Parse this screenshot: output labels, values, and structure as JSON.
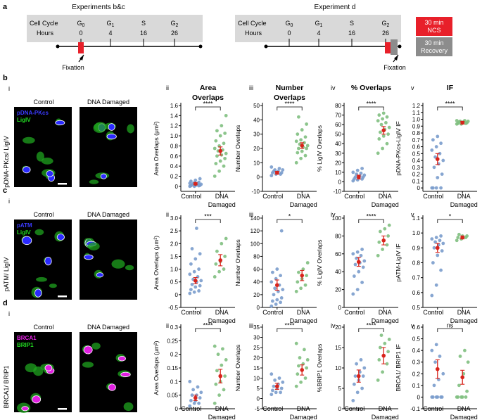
{
  "panel_a": {
    "letter": "a",
    "left": {
      "title": "Experiments b&c",
      "row1_label": "Cell Cycle",
      "row2_label": "Hours",
      "phases": [
        "G0",
        "G1",
        "S",
        "G2"
      ],
      "hours": [
        "0",
        "4",
        "16",
        "26"
      ],
      "marker_label": "Fixation"
    },
    "right": {
      "title": "Experiment d",
      "row1_label": "Cell Cycle",
      "row2_label": "Hours",
      "phases": [
        "G0",
        "G1",
        "S",
        "G2"
      ],
      "hours": [
        "0",
        "4",
        "16",
        "26"
      ],
      "marker_label": "Fixation",
      "legend": [
        {
          "line1": "30 min",
          "line2": "NCS",
          "color": "#e8202a"
        },
        {
          "line1": "30 min",
          "line2": "Recovery",
          "color": "#8c8c8c"
        }
      ]
    }
  },
  "micro": {
    "b": {
      "letter": "b",
      "sub": "i",
      "ylabel": "pDNA-PKcs/ LigIV",
      "col1": "Control",
      "col2": "DNA Damaged",
      "legend1": "pDNA-PKcs",
      "legend1_color": "#3b3bff",
      "legend2": "LigIV",
      "legend2_color": "#22dd22"
    },
    "c": {
      "letter": "c",
      "sub": "i",
      "ylabel": "pATM/ LigIV",
      "col1": "Control",
      "col2": "DNA Damaged",
      "legend1": "pATM",
      "legend1_color": "#3b3bff",
      "legend2": "LigIV",
      "legend2_color": "#22dd22"
    },
    "d": {
      "letter": "d",
      "sub": "i",
      "ylabel": "BRCA1/ BRIP1",
      "col1": "Control",
      "col2": "DNA Damaged",
      "legend1": "BRCA1",
      "legend1_color": "#ee22ee",
      "legend2": "BRIP1",
      "legend2_color": "#22dd22"
    }
  },
  "chart_data": [
    {
      "id": "b-ii",
      "type": "scatter",
      "sub": "ii",
      "title": [
        "Area",
        "Overlaps"
      ],
      "ylabel": "Area Overlaps (μm²)",
      "yticks": [
        "0",
        "0.2",
        "0.4",
        "0.6",
        "0.8",
        "1.0",
        "1.2",
        "1.4",
        "1.6"
      ],
      "ylim": [
        -0.1,
        1.6
      ],
      "categories": [
        "Control",
        "DNA Damaged"
      ],
      "sig": "****",
      "means": [
        0.05,
        0.7
      ],
      "errs": [
        0.02,
        0.08
      ],
      "groups": [
        [
          0.0,
          0.0,
          0.01,
          0.01,
          0.02,
          0.02,
          0.03,
          0.03,
          0.04,
          0.05,
          0.05,
          0.06,
          0.07,
          0.08,
          0.1,
          0.12,
          0.15
        ],
        [
          0.2,
          0.3,
          0.4,
          0.45,
          0.5,
          0.55,
          0.6,
          0.62,
          0.65,
          0.7,
          0.72,
          0.75,
          0.8,
          0.85,
          0.9,
          1.0,
          1.05,
          1.1,
          1.2,
          1.4
        ]
      ]
    },
    {
      "id": "b-iii",
      "type": "scatter",
      "sub": "iii",
      "title": [
        "Number",
        "Overlaps"
      ],
      "ylabel": "Number Overlaps",
      "yticks": [
        "-10",
        "0",
        "10",
        "20",
        "30",
        "40",
        "50"
      ],
      "ylim": [
        -10,
        50
      ],
      "categories": [
        "Control",
        "DNA Damaged"
      ],
      "sig": "****",
      "means": [
        3,
        22
      ],
      "errs": [
        1,
        2
      ],
      "groups": [
        [
          1,
          2,
          2,
          3,
          3,
          3,
          4,
          4,
          5,
          5,
          6,
          7
        ],
        [
          10,
          13,
          15,
          17,
          18,
          20,
          20,
          21,
          22,
          23,
          24,
          25,
          26,
          28,
          30,
          33,
          37,
          42
        ]
      ]
    },
    {
      "id": "b-iv",
      "type": "scatter",
      "sub": "iv",
      "title": [
        "% Overlaps"
      ],
      "ylabel": "% LigIV Overlaps",
      "yticks": [
        "-10",
        "0",
        "10",
        "20",
        "30",
        "40",
        "50",
        "60",
        "70",
        "80"
      ],
      "ylim": [
        -10,
        80
      ],
      "categories": [
        "Control",
        "DNA Damaged"
      ],
      "sig": "****",
      "means": [
        5,
        54
      ],
      "errs": [
        2,
        4
      ],
      "groups": [
        [
          1,
          2,
          3,
          3,
          4,
          5,
          5,
          6,
          7,
          8,
          9,
          10,
          12,
          14
        ],
        [
          30,
          35,
          40,
          45,
          48,
          50,
          52,
          55,
          57,
          60,
          62,
          64,
          66,
          68,
          70,
          72
        ]
      ]
    },
    {
      "id": "b-v",
      "type": "scatter",
      "sub": "v",
      "title": [
        "IF"
      ],
      "ylabel": "pDNA-PKcs-LigIV IF",
      "yticks": [
        "0",
        "0.1",
        "0.2",
        "0.3",
        "0.4",
        "0.5",
        "0.6",
        "0.7",
        "0.8",
        "0.9",
        "1.0",
        "1.1",
        "1.2"
      ],
      "ylim": [
        -0.05,
        1.2
      ],
      "categories": [
        "Control",
        "DNA Damaged"
      ],
      "sig": "****",
      "means": [
        0.42,
        0.95
      ],
      "errs": [
        0.08,
        0.02
      ],
      "groups": [
        [
          0.0,
          0.0,
          0.0,
          0.0,
          0.15,
          0.2,
          0.3,
          0.35,
          0.4,
          0.45,
          0.5,
          0.55,
          0.6,
          0.65,
          0.7,
          0.75
        ],
        [
          0.93,
          0.93,
          0.94,
          0.94,
          0.95,
          0.95,
          0.96,
          0.96,
          0.97,
          0.97,
          0.98,
          0.98
        ]
      ]
    },
    {
      "id": "c-ii",
      "type": "scatter",
      "sub": "ii",
      "title": [],
      "ylabel": "Area Overlaps (μm²)",
      "yticks": [
        "-0.5",
        "0",
        "0.5",
        "1.0",
        "1.5",
        "2.0",
        "2.5",
        "3.0"
      ],
      "ylim": [
        -0.5,
        3.0
      ],
      "categories": [
        "Control",
        "DNA Damaged"
      ],
      "sig": "***",
      "means": [
        0.55,
        1.35
      ],
      "errs": [
        0.12,
        0.22
      ],
      "groups": [
        [
          0.05,
          0.1,
          0.15,
          0.2,
          0.3,
          0.35,
          0.4,
          0.5,
          0.55,
          0.6,
          0.7,
          0.8,
          0.9,
          1.0,
          1.2,
          1.4,
          1.6,
          1.8,
          2.6
        ],
        [
          0.7,
          0.9,
          1.0,
          1.2,
          1.3,
          1.5,
          1.7,
          2.0,
          2.2
        ]
      ]
    },
    {
      "id": "c-iii",
      "type": "scatter",
      "sub": "iii",
      "title": [],
      "ylabel": "Number Overlaps",
      "yticks": [
        "0",
        "20",
        "40",
        "60",
        "80",
        "100",
        "120",
        "140"
      ],
      "ylim": [
        0,
        140
      ],
      "categories": [
        "Control",
        "DNA Damaged"
      ],
      "sig": "*",
      "means": [
        35,
        50
      ],
      "errs": [
        8,
        8
      ],
      "groups": [
        [
          2,
          5,
          8,
          10,
          12,
          15,
          20,
          25,
          28,
          30,
          35,
          40,
          45,
          50,
          55,
          60,
          120
        ],
        [
          25,
          30,
          35,
          40,
          45,
          50,
          55,
          60,
          70
        ]
      ]
    },
    {
      "id": "c-iv",
      "type": "scatter",
      "sub": "iv",
      "title": [],
      "ylabel": "% LigIV Overlaps",
      "yticks": [
        "0",
        "20",
        "40",
        "60",
        "80",
        "100"
      ],
      "ylim": [
        0,
        100
      ],
      "categories": [
        "Control",
        "DNA Damaged"
      ],
      "sig": "****",
      "means": [
        51,
        75
      ],
      "errs": [
        5,
        5
      ],
      "groups": [
        [
          15,
          20,
          28,
          35,
          40,
          45,
          48,
          50,
          52,
          55,
          58,
          60,
          62,
          65
        ],
        [
          58,
          65,
          70,
          73,
          75,
          80,
          85,
          88,
          92
        ]
      ]
    },
    {
      "id": "c-v",
      "type": "scatter",
      "sub": "v",
      "title": [],
      "ylabel": "pATM-LigIV IF",
      "yticks": [
        "0.5",
        "0.6",
        "0.7",
        "0.8",
        "0.9",
        "1.0",
        "1.1"
      ],
      "ylim": [
        0.5,
        1.1
      ],
      "categories": [
        "Control",
        "DNA Damaged"
      ],
      "sig": "*",
      "means": [
        0.9,
        0.97
      ],
      "errs": [
        0.03,
        0.01
      ],
      "groups": [
        [
          0.58,
          0.65,
          0.75,
          0.8,
          0.85,
          0.88,
          0.9,
          0.92,
          0.93,
          0.94,
          0.95,
          0.96,
          0.97,
          0.98
        ],
        [
          0.95,
          0.96,
          0.97,
          0.97,
          0.98,
          0.98,
          0.99
        ]
      ]
    },
    {
      "id": "d-ii",
      "type": "scatter",
      "sub": "ii",
      "title": [],
      "ylabel": "Area Overlaps (μm²)",
      "yticks": [
        "0",
        "0.05",
        "0.1",
        "0.15",
        "0.2",
        "0.25",
        "0.3"
      ],
      "ylim": [
        0,
        0.3
      ],
      "categories": [
        "Control",
        "DNA Damaged"
      ],
      "sig": "****",
      "means": [
        0.04,
        0.12
      ],
      "errs": [
        0.01,
        0.025
      ],
      "groups": [
        [
          0.01,
          0.02,
          0.02,
          0.03,
          0.03,
          0.04,
          0.05,
          0.05,
          0.06,
          0.07,
          0.08,
          0.1
        ],
        [
          0.02,
          0.05,
          0.07,
          0.09,
          0.1,
          0.12,
          0.14,
          0.16,
          0.18,
          0.2,
          0.22,
          0.23
        ]
      ]
    },
    {
      "id": "d-iii",
      "type": "scatter",
      "sub": "iii",
      "title": [],
      "ylabel": "Number Overlaps",
      "yticks": [
        "-5",
        "0",
        "5",
        "10",
        "15",
        "20",
        "25",
        "30",
        "35"
      ],
      "ylim": [
        -5,
        35
      ],
      "categories": [
        "Control",
        "DNA Damaged"
      ],
      "sig": "****",
      "means": [
        6,
        14
      ],
      "errs": [
        1.5,
        2.5
      ],
      "groups": [
        [
          2,
          3,
          3,
          4,
          5,
          5,
          6,
          7,
          8,
          9,
          10,
          12
        ],
        [
          6,
          8,
          10,
          12,
          14,
          15,
          16,
          17,
          19,
          20,
          24,
          27
        ]
      ]
    },
    {
      "id": "d-iv",
      "type": "scatter",
      "sub": "iv",
      "title": [],
      "ylabel": "%BRIP1 Overlaps",
      "yticks": [
        "0",
        "5",
        "10",
        "15",
        "20"
      ],
      "ylim": [
        0,
        20
      ],
      "categories": [
        "Control",
        "DNA Damaged"
      ],
      "sig": "****",
      "means": [
        8,
        13
      ],
      "errs": [
        1.5,
        2
      ],
      "groups": [
        [
          2,
          4,
          5,
          6,
          7,
          8,
          8,
          9,
          10,
          11,
          12
        ],
        [
          7,
          9,
          11,
          12,
          13,
          14,
          15,
          16,
          17,
          18
        ]
      ]
    },
    {
      "id": "d-v",
      "type": "scatter",
      "sub": "v",
      "title": [],
      "ylabel": "BRCA1/ BRIP1 IF",
      "yticks": [
        "-0.1",
        "0",
        "0.1",
        "0.2",
        "0.3",
        "0.4",
        "0.5",
        "0.6"
      ],
      "ylim": [
        -0.1,
        0.6
      ],
      "categories": [
        "Control",
        "DNA Damaged"
      ],
      "sig": "ns",
      "means": [
        0.24,
        0.17
      ],
      "errs": [
        0.08,
        0.06
      ],
      "groups": [
        [
          0.0,
          0.0,
          0.0,
          0.0,
          0.0,
          0.0,
          0.1,
          0.15,
          0.2,
          0.3,
          0.35,
          0.4,
          0.45
        ],
        [
          0.0,
          0.0,
          0.0,
          0.0,
          0.0,
          0.05,
          0.1,
          0.2,
          0.3,
          0.35,
          0.4
        ]
      ]
    }
  ]
}
